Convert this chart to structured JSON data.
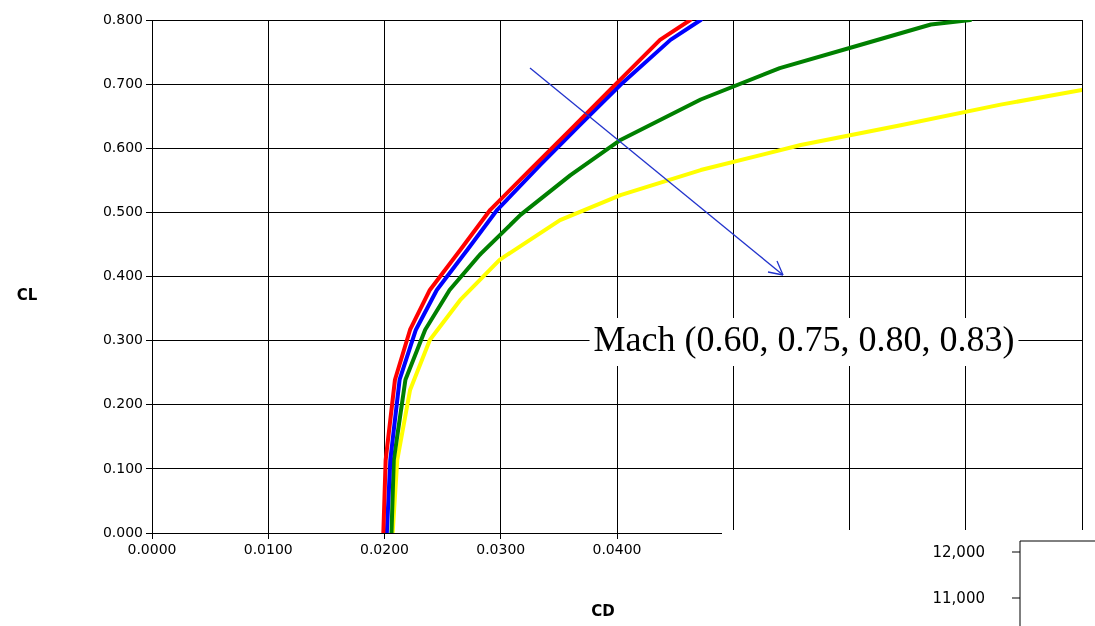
{
  "chart_data": [
    {
      "type": "line",
      "xlabel": "CD",
      "ylabel": "CL",
      "annotations": [
        "Mach (0.60, 0.75, 0.80, 0.83)"
      ],
      "xlim": [
        0,
        0.08
      ],
      "ylim": [
        0,
        0.8
      ],
      "xticks": [
        {
          "value": 0,
          "label": "0.0000"
        },
        {
          "value": 0.01,
          "label": "0.0100"
        },
        {
          "value": 0.02,
          "label": "0.0200"
        },
        {
          "value": 0.03,
          "label": "0.0300"
        },
        {
          "value": 0.04,
          "label": "0.0400"
        },
        {
          "value": 0.05,
          "label": null
        },
        {
          "value": 0.06,
          "label": null
        },
        {
          "value": 0.07,
          "label": null
        },
        {
          "value": 0.08,
          "label": null
        }
      ],
      "yticks": [
        {
          "value": 0,
          "label": "0.000"
        },
        {
          "value": 0.1,
          "label": "0.100"
        },
        {
          "value": 0.2,
          "label": "0.200"
        },
        {
          "value": 0.3,
          "label": "0.300"
        },
        {
          "value": 0.4,
          "label": "0.400"
        },
        {
          "value": 0.5,
          "label": "0.500"
        },
        {
          "value": 0.6,
          "label": "0.600"
        },
        {
          "value": 0.7,
          "label": "0.700"
        },
        {
          "value": 0.8,
          "label": "0.800"
        }
      ],
      "grid": true,
      "legend": false,
      "marker": "none",
      "line_style": "solid",
      "series": [
        {
          "color": "#ff0000",
          "x": [
            0.0199,
            0.0201,
            0.0209,
            0.0222,
            0.0239,
            0.0265,
            0.0291,
            0.0325,
            0.036,
            0.0394,
            0.0437,
            0.0463
          ],
          "values": [
            0,
            0.114,
            0.239,
            0.317,
            0.379,
            0.441,
            0.504,
            0.566,
            0.629,
            0.691,
            0.769,
            0.8
          ]
        },
        {
          "color": "#0000ff",
          "x": [
            0.0202,
            0.0205,
            0.0213,
            0.0227,
            0.0245,
            0.0271,
            0.0297,
            0.0334,
            0.0368,
            0.0403,
            0.0446,
            0.0472
          ],
          "values": [
            0,
            0.114,
            0.239,
            0.317,
            0.379,
            0.441,
            0.504,
            0.574,
            0.636,
            0.699,
            0.769,
            0.8
          ]
        },
        {
          "color": "#008000",
          "x": [
            0.0206,
            0.0208,
            0.0218,
            0.0235,
            0.0256,
            0.0282,
            0.0317,
            0.036,
            0.0403,
            0.0472,
            0.054,
            0.0609,
            0.067,
            0.0704
          ],
          "values": [
            0,
            0.114,
            0.239,
            0.317,
            0.379,
            0.434,
            0.496,
            0.558,
            0.613,
            0.676,
            0.725,
            0.761,
            0.793,
            0.8
          ]
        },
        {
          "color": "#ffff00",
          "x": [
            0.0207,
            0.0211,
            0.0222,
            0.0239,
            0.0265,
            0.0299,
            0.0351,
            0.0403,
            0.0472,
            0.0558,
            0.0644,
            0.073,
            0.08
          ],
          "values": [
            0,
            0.114,
            0.223,
            0.301,
            0.363,
            0.426,
            0.488,
            0.527,
            0.566,
            0.605,
            0.636,
            0.668,
            0.691
          ]
        }
      ]
    },
    {
      "type": "other",
      "annotations": [
        "12,000",
        "11,000"
      ]
    }
  ]
}
